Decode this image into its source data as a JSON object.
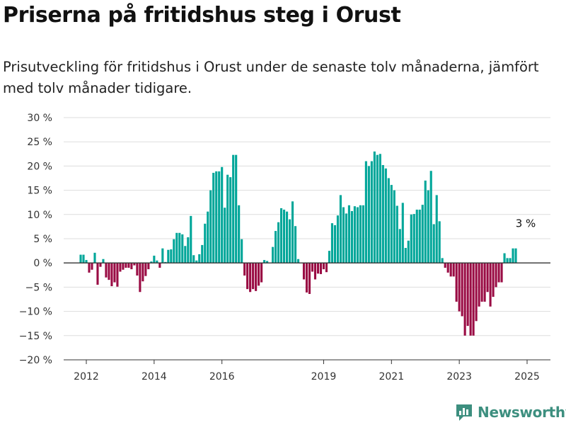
{
  "title": "Priserna på fritidshus steg i Orust",
  "subtitle": "Prisutveckling för fritidshus i Orust under de senaste tolv månaderna, jämfört med tolv månader tidigare.",
  "brand": {
    "name": "Newsworthy",
    "color": "#3d8f7f"
  },
  "colors": {
    "positive": "#00a699",
    "negative": "#9a0c44",
    "zero_line": "#333333",
    "grid": "#dddddd"
  },
  "chart_data": {
    "type": "bar",
    "ylim": [
      -20,
      30
    ],
    "y_ticks": [
      30,
      25,
      20,
      15,
      10,
      5,
      0,
      -5,
      -10,
      -15,
      -20
    ],
    "y_tick_labels": [
      "30 %",
      "25 %",
      "20 %",
      "15 %",
      "10 %",
      "5 %",
      "0 %",
      "−5 %",
      "−10 %",
      "−15 %",
      "−20 %"
    ],
    "x_tick_labels": [
      "2012",
      "2014",
      "2016",
      "2019",
      "2021",
      "2023",
      "2025"
    ],
    "x_tick_months": [
      "2012-01",
      "2014-01",
      "2016-01",
      "2019-01",
      "2021-01",
      "2023-01",
      "2025-01"
    ],
    "annotation": {
      "text": "3 %",
      "month": "2025-01"
    },
    "series": [
      {
        "start_month": "2011-11",
        "values": [
          1.7,
          1.7,
          0.6,
          -2.0,
          -1.4,
          2.1,
          -4.5,
          -0.8,
          0.8,
          -3.0,
          -3.5,
          -4.8,
          -4.0,
          -4.9,
          -1.8,
          -1.4,
          -1.0,
          -1.0,
          -1.3,
          -0.5,
          -2.6,
          -6.0,
          -3.8,
          -2.7,
          -1.3,
          0.3,
          1.5,
          0.5,
          -1.0,
          3.0,
          0.2,
          2.7,
          2.8,
          4.9,
          6.2,
          6.2,
          5.9,
          3.5,
          5.3,
          9.7,
          1.6,
          0.5,
          1.8,
          3.7,
          8.1,
          10.6,
          15.0,
          18.6,
          18.9,
          18.9,
          19.8,
          11.4,
          18.2,
          17.7,
          22.3,
          22.3,
          11.9,
          4.9,
          -2.6,
          -5.4,
          -6.0,
          -5.4,
          -5.8,
          -4.7,
          -4.0,
          0.6,
          0.4,
          0.1,
          3.3,
          6.6,
          8.4,
          11.3,
          11.0,
          10.6,
          9.0,
          12.7,
          7.6,
          0.8,
          0.1,
          -3.4,
          -6.1,
          -6.4,
          -1.8,
          -3.4,
          -2.2,
          -2.3,
          -1.3,
          -1.9,
          2.5,
          8.2,
          7.8,
          9.8,
          14.0,
          11.5,
          10.2,
          11.9,
          10.7,
          11.7,
          11.5,
          11.9,
          11.9,
          21.0,
          20.0,
          21.0,
          23.0,
          22.3,
          22.5,
          20.2,
          19.5,
          17.5,
          16.1,
          15.0,
          11.8,
          7.0,
          12.4,
          3.1,
          4.6,
          10.0,
          10.1,
          11.0,
          11.0,
          12.0,
          17.0,
          15.0,
          19.0,
          8.0,
          14.0,
          8.6,
          1.0,
          -1.0,
          -2.0,
          -2.8,
          -2.8,
          -8.0,
          -10.0,
          -11.0,
          -15.0,
          -13.0,
          -15.0,
          -15.0,
          -12.0,
          -9.0,
          -8.0,
          -8.0,
          -6.0,
          -9.0,
          -7.0,
          -5.0,
          -4.0,
          -4.0,
          2.0,
          1.0,
          1.0,
          3.0,
          3.0
        ]
      }
    ]
  }
}
